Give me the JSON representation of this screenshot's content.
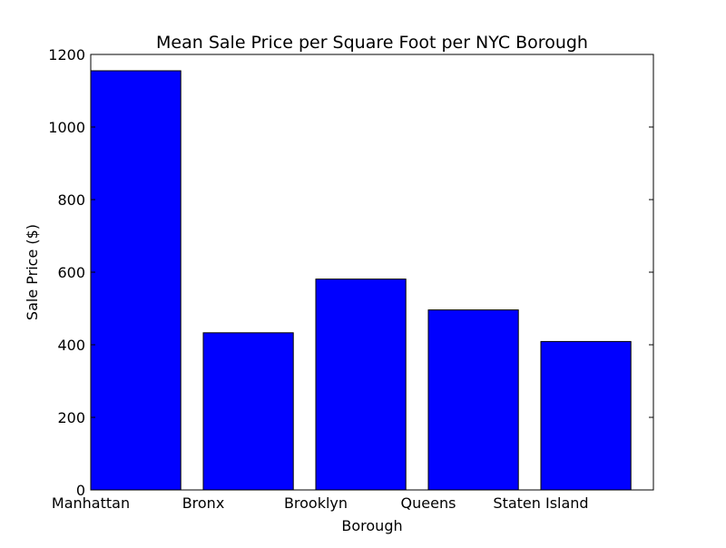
{
  "chart_data": {
    "type": "bar",
    "title": "Mean Sale Price per Square Foot per NYC Borough",
    "xlabel": "Borough",
    "ylabel": "Sale Price ($)",
    "categories": [
      "Manhattan",
      "Bronx",
      "Brooklyn",
      "Queens",
      "Staten Island"
    ],
    "values": [
      1155,
      433,
      581,
      496,
      409
    ],
    "ylim": [
      0,
      1200
    ],
    "yticks": [
      0,
      200,
      400,
      600,
      800,
      1000,
      1200
    ],
    "ytick_labels": [
      "0",
      "200",
      "400",
      "600",
      "800",
      "1000",
      "1200"
    ],
    "grid": false,
    "legend": "none",
    "bar_color": "#0000ff",
    "edge_color": "#000000"
  }
}
